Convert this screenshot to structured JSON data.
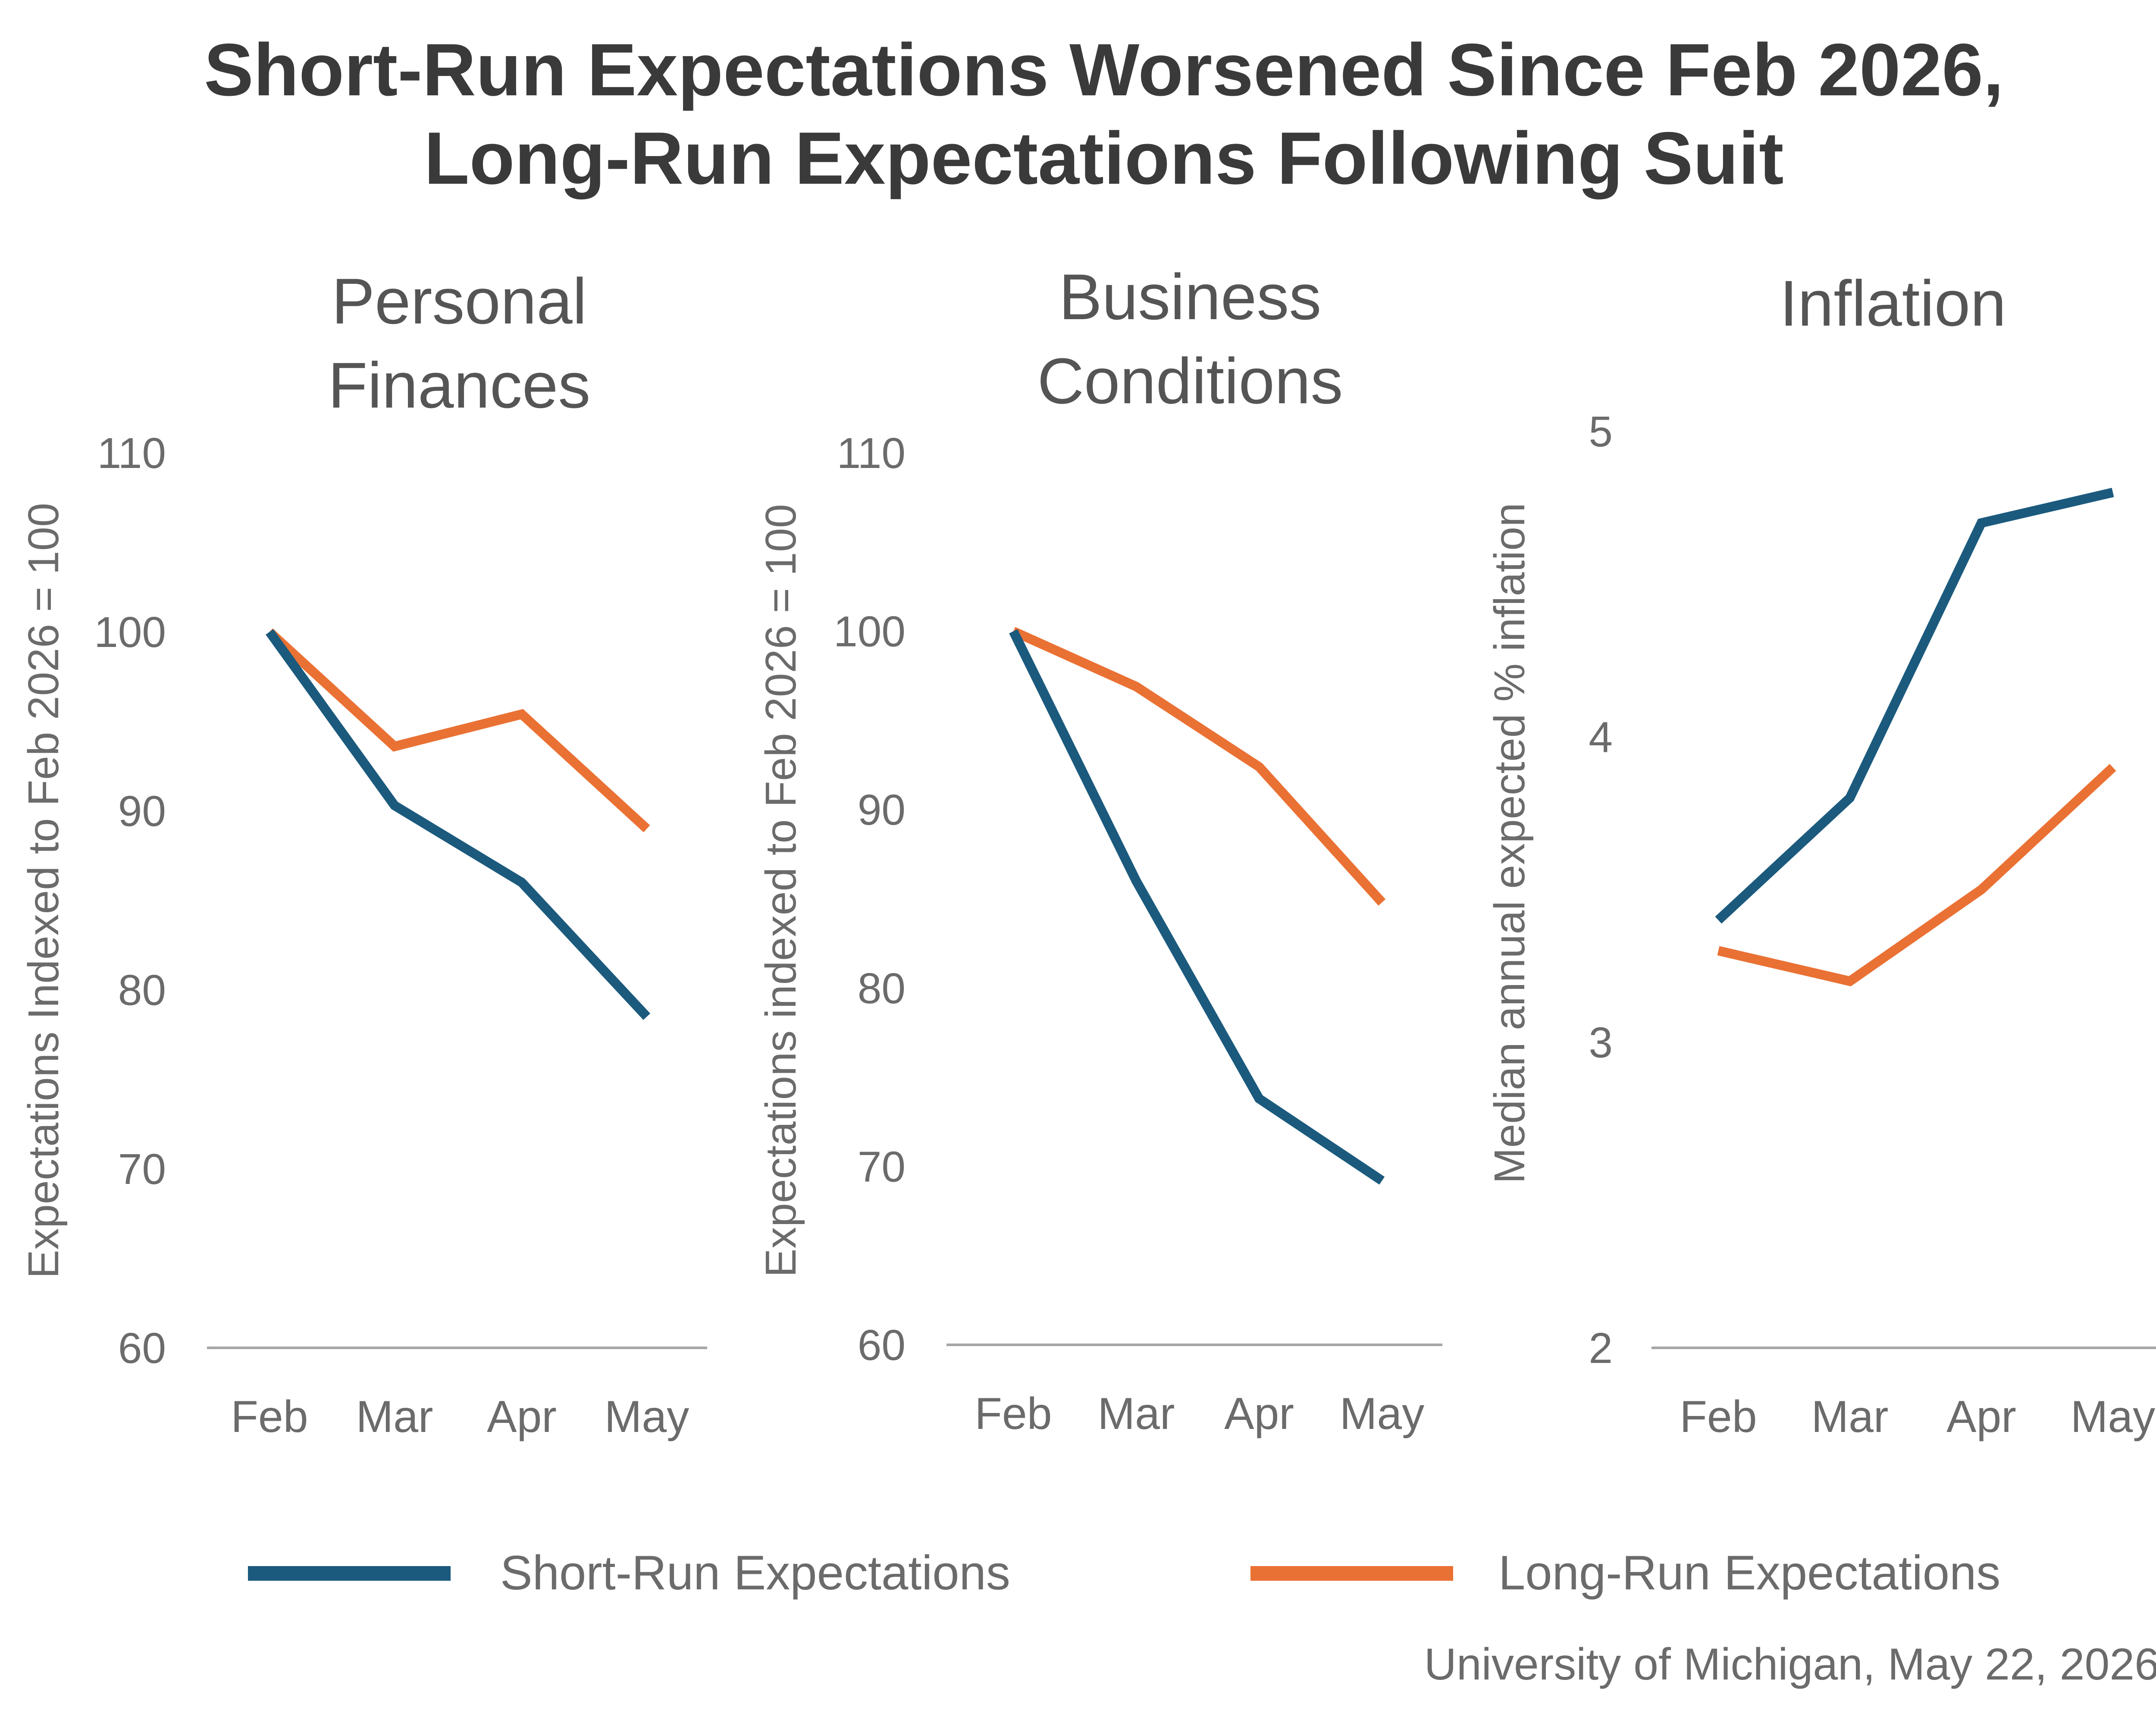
{
  "title_lines": [
    "Short-Run Expectations Worsened Since Feb 2026,",
    "Long-Run Expectations Following Suit"
  ],
  "source": "University of Michigan, May 22, 2026",
  "colors": {
    "short_run": "#1b5a7d",
    "long_run": "#ea7134",
    "axis_text": "#6b6b6b",
    "panel_title": "#555555",
    "baseline": "#a6a6a6"
  },
  "legend": [
    {
      "label": "Short-Run Expectations",
      "color": "#1b5a7d"
    },
    {
      "label": "Long-Run Expectations",
      "color": "#ea7134"
    }
  ],
  "chart_data": [
    {
      "type": "line",
      "title_lines": [
        "Personal",
        "Finances"
      ],
      "ylabel": "Expectations Indexed to Feb 2026 = 100",
      "categories": [
        "Feb",
        "Mar",
        "Apr",
        "May"
      ],
      "ylim": [
        60,
        110
      ],
      "yticks": [
        60,
        70,
        80,
        90,
        100,
        110
      ],
      "grid": false,
      "series": [
        {
          "name": "Short-Run Expectations",
          "values": [
            100,
            90.3,
            86.0,
            78.5
          ]
        },
        {
          "name": "Long-Run Expectations",
          "values": [
            100,
            93.6,
            95.4,
            89.0
          ]
        }
      ]
    },
    {
      "type": "line",
      "title_lines": [
        "Business",
        "Conditions"
      ],
      "ylabel": "Expectations indexed to Feb 2026 = 100",
      "categories": [
        "Feb",
        "Mar",
        "Apr",
        "May"
      ],
      "ylim": [
        60,
        110
      ],
      "yticks": [
        60,
        70,
        80,
        90,
        100,
        110
      ],
      "grid": false,
      "series": [
        {
          "name": "Short-Run Expectations",
          "values": [
            100,
            86.0,
            73.8,
            69.2
          ]
        },
        {
          "name": "Long-Run Expectations",
          "values": [
            100,
            96.9,
            92.4,
            84.8
          ]
        }
      ]
    },
    {
      "type": "line",
      "title_lines": [
        "Inflation"
      ],
      "ylabel": "Median annual expected % inflation",
      "categories": [
        "Feb",
        "Mar",
        "Apr",
        "May"
      ],
      "ylim": [
        2,
        5
      ],
      "yticks": [
        2,
        3,
        4,
        5
      ],
      "grid": false,
      "series": [
        {
          "name": "Short-Run Expectations",
          "values": [
            3.4,
            3.8,
            4.7,
            4.8
          ]
        },
        {
          "name": "Long-Run Expectations",
          "values": [
            3.3,
            3.2,
            3.5,
            3.9
          ]
        }
      ]
    }
  ]
}
